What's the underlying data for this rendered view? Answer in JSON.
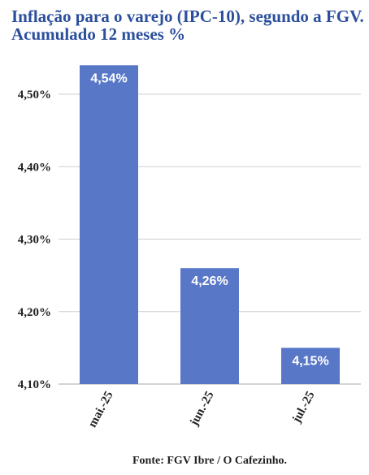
{
  "title_line1": "Inflação para o varejo (IPC-10), segundo a FGV.",
  "title_line2": "Acumulado 12 meses %",
  "source": "Fonte: FGV Ibre / O Cafezinho.",
  "colors": {
    "bar": "#5877c7",
    "title": "#2b4f9c",
    "grid": "#cfcfcf"
  },
  "chart_data": {
    "type": "bar",
    "categories": [
      "mai.-25",
      "jun.-25",
      "jul.-25"
    ],
    "values": [
      4.54,
      4.26,
      4.15
    ],
    "value_labels": [
      "4,54%",
      "4,26%",
      "4,15%"
    ],
    "yticks": [
      4.1,
      4.2,
      4.3,
      4.4,
      4.5
    ],
    "ytick_labels": [
      "4,10%",
      "4,20%",
      "4,30%",
      "4,40%",
      "4,50%"
    ],
    "ylim": [
      4.1,
      4.54
    ],
    "grid": true,
    "xlabel": "",
    "ylabel": ""
  }
}
